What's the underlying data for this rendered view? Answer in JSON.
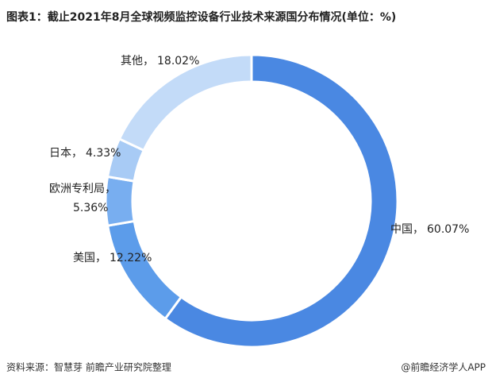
{
  "chart_data": {
    "type": "pie",
    "title": "图表1：截止2021年8月全球视频监控设备行业技术来源国分布情况(单位：%)",
    "categories": [
      "中国",
      "美国",
      "欧洲专利局",
      "日本",
      "其他"
    ],
    "values": [
      60.07,
      12.22,
      5.36,
      4.33,
      18.02
    ],
    "value_labels": [
      "60.07%",
      "12.22%",
      "5.36%",
      "4.33%",
      "18.02%"
    ],
    "label_separator": "，",
    "colors": [
      "#4a88e2",
      "#5c9cea",
      "#78aef0",
      "#a8cbf5",
      "#c3dbf8"
    ],
    "source": "资料来源：智慧芽 前瞻产业研究院整理",
    "credit": "@前瞻经济学人APP"
  }
}
